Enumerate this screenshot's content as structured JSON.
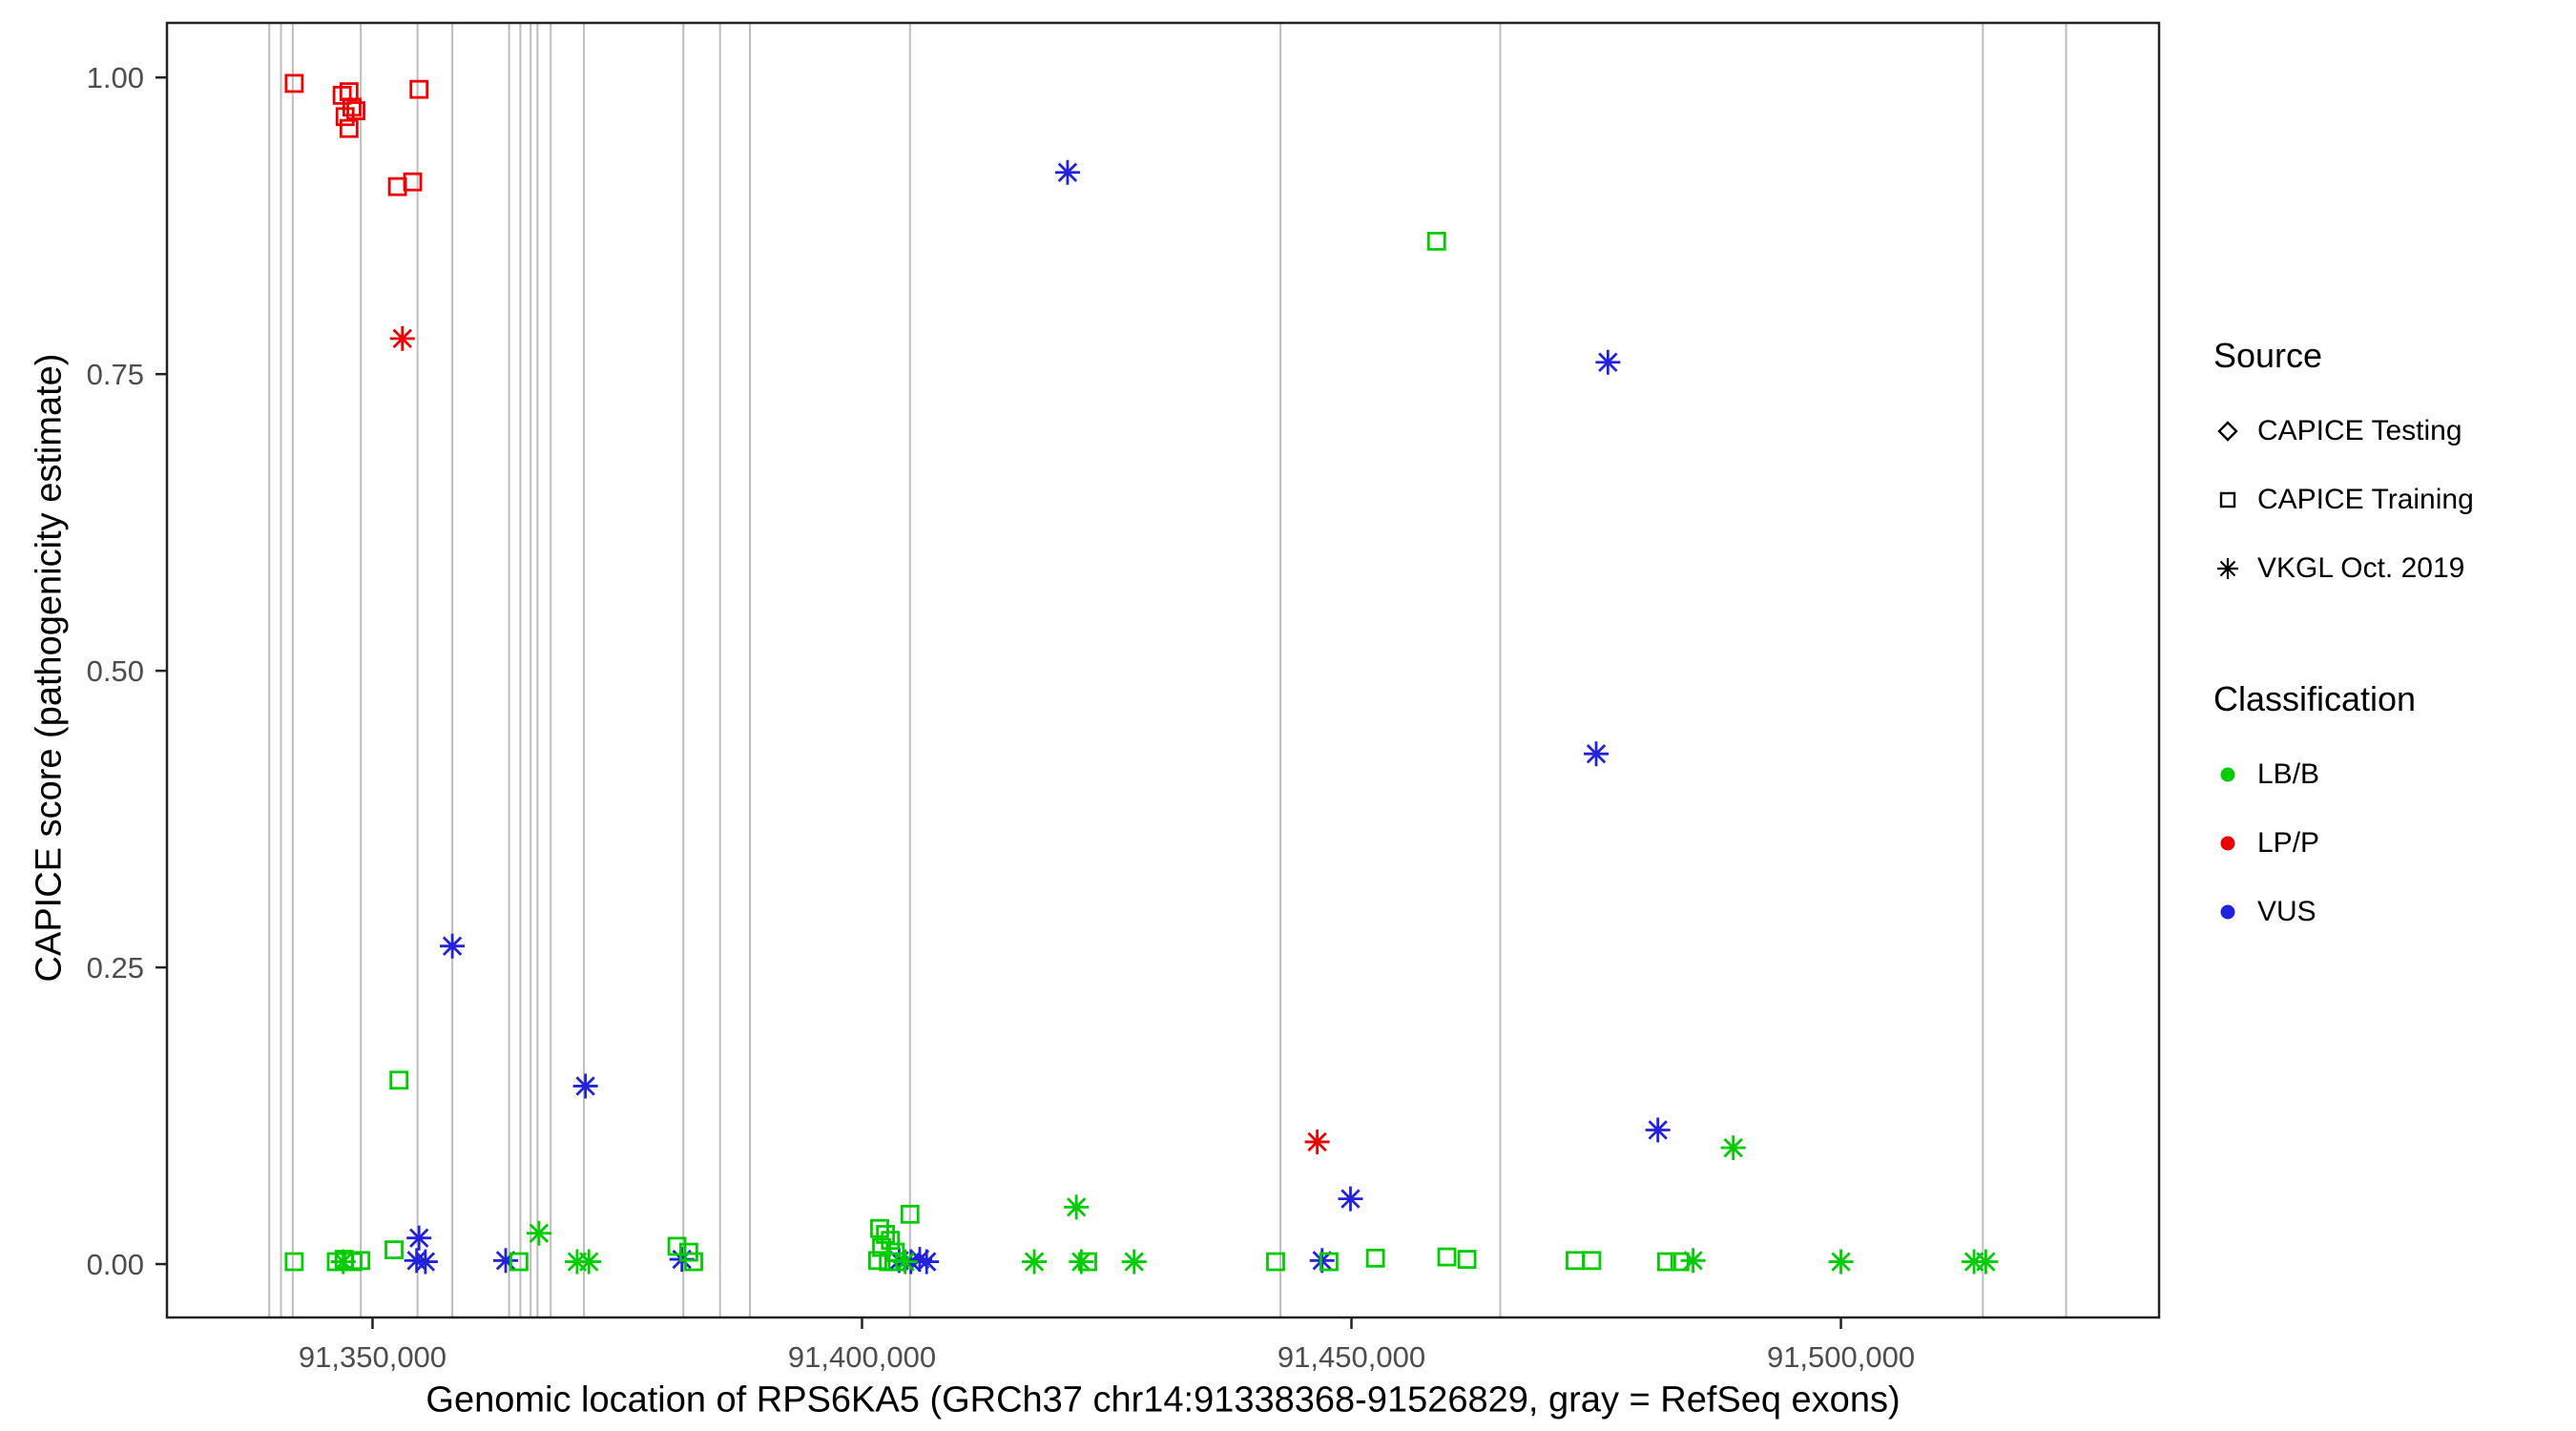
{
  "chart_data": {
    "type": "scatter",
    "title": "",
    "xlabel": "Genomic location of RPS6KA5 (GRCh37 chr14:91338368-91526829, gray = RefSeq exons)",
    "ylabel": "CAPICE score (pathogenicity estimate)",
    "xlim": [
      91329000,
      91532500
    ],
    "ylim": [
      -0.045,
      1.046
    ],
    "grid": false,
    "exon_color": "#BDBDBD",
    "panel_border_color": "#222222",
    "tick_label_color": "#4D4D4D",
    "x_ticks": [
      {
        "value": 91350000,
        "label": "91,350,000"
      },
      {
        "value": 91400000,
        "label": "91,400,000"
      },
      {
        "value": 91450000,
        "label": "91,450,000"
      },
      {
        "value": 91500000,
        "label": "91,500,000"
      }
    ],
    "y_ticks": [
      {
        "value": 0.0,
        "label": "0.00"
      },
      {
        "value": 0.25,
        "label": "0.25"
      },
      {
        "value": 0.5,
        "label": "0.50"
      },
      {
        "value": 0.75,
        "label": "0.75"
      },
      {
        "value": 1.0,
        "label": "1.00"
      }
    ],
    "exons": [
      91339450,
      91340650,
      91341850,
      91348800,
      91354600,
      91358150,
      91363950,
      91365100,
      91366150,
      91366850,
      91368200,
      91371600,
      91381750,
      91385500,
      91388550,
      91404900,
      91442750,
      91465200,
      91514500,
      91523000
    ],
    "series": [
      {
        "classification": "LP/P",
        "source": "CAPICE Training",
        "marker": "square",
        "color": "#EE0000",
        "points": [
          [
            91342000,
            0.995
          ],
          [
            91346900,
            0.985
          ],
          [
            91347600,
            0.988
          ],
          [
            91347900,
            0.975
          ],
          [
            91347200,
            0.967
          ],
          [
            91348300,
            0.972
          ],
          [
            91347600,
            0.957
          ],
          [
            91354750,
            0.99
          ],
          [
            91352550,
            0.908
          ],
          [
            91354100,
            0.912
          ]
        ]
      },
      {
        "classification": "LP/P",
        "source": "VKGL Oct. 2019",
        "marker": "asterisk",
        "color": "#EE0000",
        "points": [
          [
            91353050,
            0.78
          ],
          [
            91446500,
            0.103
          ]
        ]
      },
      {
        "classification": "VUS",
        "source": "VKGL Oct. 2019",
        "marker": "asterisk",
        "color": "#2222DD",
        "points": [
          [
            91421000,
            0.92
          ],
          [
            91476200,
            0.76
          ],
          [
            91475000,
            0.43
          ],
          [
            91358150,
            0.268
          ],
          [
            91371750,
            0.15
          ],
          [
            91481300,
            0.113
          ],
          [
            91449900,
            0.055
          ],
          [
            91354750,
            0.022
          ],
          [
            91354500,
            0.003
          ],
          [
            91355400,
            0.002
          ],
          [
            91363600,
            0.003
          ],
          [
            91381600,
            0.004
          ],
          [
            91403800,
            0.003
          ],
          [
            91405000,
            0.002
          ],
          [
            91405900,
            0.004
          ],
          [
            91406600,
            0.002
          ],
          [
            91447000,
            0.003
          ]
        ]
      },
      {
        "classification": "LB/B",
        "source": "CAPICE Training",
        "marker": "square",
        "color": "#00CC00",
        "points": [
          [
            91458700,
            0.862
          ],
          [
            91352700,
            0.155
          ],
          [
            91404900,
            0.042
          ],
          [
            91401800,
            0.03
          ],
          [
            91402400,
            0.025
          ],
          [
            91402900,
            0.02
          ],
          [
            91402000,
            0.014
          ],
          [
            91403400,
            0.01
          ],
          [
            91381100,
            0.015
          ],
          [
            91382300,
            0.01
          ],
          [
            91352200,
            0.012
          ],
          [
            91342000,
            0.002
          ],
          [
            91346300,
            0.002
          ],
          [
            91347100,
            0.004
          ],
          [
            91348000,
            0.002
          ],
          [
            91348800,
            0.003
          ],
          [
            91364950,
            0.002
          ],
          [
            91382800,
            0.002
          ],
          [
            91401600,
            0.003
          ],
          [
            91402700,
            0.002
          ],
          [
            91403600,
            0.002
          ],
          [
            91423050,
            0.002
          ],
          [
            91442250,
            0.002
          ],
          [
            91447700,
            0.002
          ],
          [
            91452450,
            0.005
          ],
          [
            91459750,
            0.006
          ],
          [
            91461800,
            0.004
          ],
          [
            91472850,
            0.003
          ],
          [
            91474550,
            0.003
          ],
          [
            91482200,
            0.002
          ],
          [
            91483550,
            0.002
          ]
        ]
      },
      {
        "classification": "LB/B",
        "source": "VKGL Oct. 2019",
        "marker": "asterisk",
        "color": "#00CC00",
        "points": [
          [
            91489000,
            0.098
          ],
          [
            91421900,
            0.048
          ],
          [
            91367000,
            0.026
          ],
          [
            91347000,
            0.002
          ],
          [
            91370900,
            0.002
          ],
          [
            91372100,
            0.002
          ],
          [
            91404400,
            0.002
          ],
          [
            91417600,
            0.002
          ],
          [
            91422400,
            0.002
          ],
          [
            91427800,
            0.002
          ],
          [
            91484900,
            0.003
          ],
          [
            91500000,
            0.002
          ],
          [
            91513600,
            0.002
          ],
          [
            91514800,
            0.002
          ]
        ]
      }
    ]
  },
  "legend": {
    "source": {
      "title": "Source",
      "items": [
        {
          "label": "CAPICE Testing",
          "marker": "diamond"
        },
        {
          "label": "CAPICE Training",
          "marker": "square"
        },
        {
          "label": "VKGL Oct. 2019",
          "marker": "asterisk"
        }
      ]
    },
    "classification": {
      "title": "Classification",
      "items": [
        {
          "label": "LB/B",
          "color": "#00CC00"
        },
        {
          "label": "LP/P",
          "color": "#EE0000"
        },
        {
          "label": "VUS",
          "color": "#2222DD"
        }
      ]
    }
  }
}
